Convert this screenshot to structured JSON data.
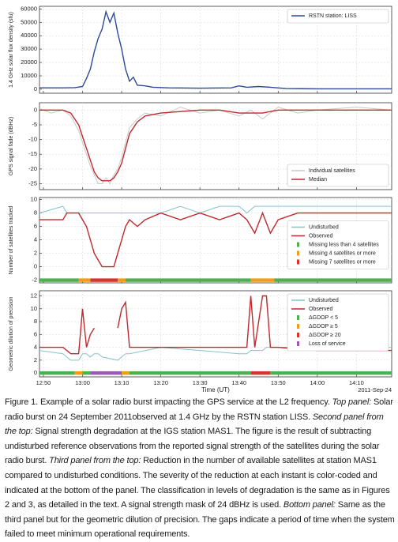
{
  "chart_data": [
    {
      "type": "line",
      "ylabel": "1.4 GHz solar flux density (sfu)",
      "xlim": [
        "12:49",
        "14:19"
      ],
      "ylim": [
        -3000,
        62000
      ],
      "yticks": [
        0,
        10000,
        20000,
        30000,
        40000,
        50000,
        60000
      ],
      "grid": true,
      "legend": "upper right",
      "x": [
        "12:49",
        "12:55",
        "12:58",
        "13:00",
        "13:01",
        "13:02",
        "13:03",
        "13:04",
        "13:05",
        "13:06",
        "13:07",
        "13:08",
        "13:09",
        "13:10",
        "13:11",
        "13:12",
        "13:13",
        "13:14",
        "13:16",
        "13:18",
        "13:22",
        "13:30",
        "13:38",
        "13:40",
        "13:42",
        "13:45",
        "13:48",
        "13:52",
        "14:00",
        "14:19"
      ],
      "series": [
        {
          "name": "RSTN station: LISS",
          "color": "#2b4a9b",
          "values": [
            1000,
            1000,
            1200,
            2000,
            8000,
            15000,
            28000,
            38000,
            45000,
            58000,
            50000,
            57000,
            42000,
            30000,
            15000,
            6000,
            9000,
            3000,
            2500,
            1500,
            1000,
            800,
            1000,
            2500,
            1500,
            2000,
            1500,
            500,
            300,
            300
          ]
        }
      ]
    },
    {
      "type": "line",
      "ylabel": "GPS signal fade (dBHz)",
      "xlim": [
        "12:49",
        "14:19"
      ],
      "ylim": [
        -27,
        2.5
      ],
      "yticks": [
        0,
        -5,
        -10,
        -15,
        -20,
        -25
      ],
      "grid": true,
      "legend": "lower right",
      "x": [
        "12:49",
        "12:52",
        "12:55",
        "12:57",
        "12:59",
        "13:00",
        "13:01",
        "13:02",
        "13:03",
        "13:04",
        "13:05",
        "13:06",
        "13:07",
        "13:08",
        "13:09",
        "13:10",
        "13:11",
        "13:12",
        "13:14",
        "13:16",
        "13:20",
        "13:25",
        "13:30",
        "13:35",
        "13:40",
        "13:43",
        "13:46",
        "13:50",
        "13:55",
        "14:00",
        "14:10",
        "14:19"
      ],
      "series": [
        {
          "name": "Individual satellites",
          "color": "#c8c8c8",
          "values": [
            0.5,
            -1,
            0,
            -2,
            -7,
            -11,
            -15,
            -19,
            -22,
            -25,
            -25,
            -23,
            -25,
            -22,
            -20,
            -16,
            -11,
            -6,
            -3,
            -1,
            -2,
            1,
            -1,
            0,
            -2,
            0,
            -3,
            1,
            -1,
            0,
            1,
            0
          ]
        },
        {
          "name": "Median",
          "color": "#c0282d",
          "values": [
            0,
            0,
            0,
            -1,
            -5,
            -9,
            -13,
            -17,
            -21,
            -23,
            -24,
            -24,
            -24,
            -23,
            -21,
            -18,
            -13,
            -8,
            -4,
            -2,
            -1,
            -0.5,
            0,
            0,
            -1,
            -1,
            -1,
            0,
            0,
            0,
            0,
            0
          ]
        }
      ]
    },
    {
      "type": "line",
      "ylabel": "Number of satellites tracked",
      "xlim": [
        "12:49",
        "14:19"
      ],
      "ylim": [
        -2.4,
        10.3
      ],
      "yticks": [
        -2,
        0,
        2,
        4,
        6,
        8,
        10
      ],
      "grid": true,
      "legend": "center right",
      "x": [
        "12:49",
        "12:55",
        "12:56",
        "12:59",
        "13:00",
        "13:01",
        "13:02",
        "13:03",
        "13:04",
        "13:05",
        "13:08",
        "13:09",
        "13:10",
        "13:11",
        "13:12",
        "13:14",
        "13:16",
        "13:20",
        "13:25",
        "13:30",
        "13:35",
        "13:40",
        "13:42",
        "13:44",
        "13:46",
        "13:48",
        "13:50",
        "13:55",
        "14:19"
      ],
      "series": [
        {
          "name": "Undisturbed",
          "color": "#86c3c6",
          "values": [
            8,
            9,
            8,
            8,
            8,
            8,
            8,
            8,
            8,
            8,
            8,
            8,
            8,
            8,
            8,
            8,
            8,
            8,
            9,
            8,
            9,
            9,
            8,
            9,
            9,
            9,
            9,
            9,
            9
          ]
        },
        {
          "name": "Observed",
          "color": "#c0282d",
          "values": [
            7,
            7,
            8,
            8,
            7,
            6,
            4,
            2,
            1,
            0,
            0,
            2,
            4,
            6,
            7,
            6,
            7,
            8,
            7,
            8,
            7,
            8,
            7,
            5,
            8,
            5,
            7,
            8,
            8
          ]
        }
      ],
      "status_y": -2,
      "status_legend": [
        {
          "name": "Missing less than 4 satellites",
          "color": "#4caf50"
        },
        {
          "name": "Missing 4 satellites or more",
          "color": "#f39c12"
        },
        {
          "name": "Missing 7 satellites or more",
          "color": "#d9342b"
        }
      ],
      "status": {
        "bins": [
          "12:49",
          "12:59",
          "13:02",
          "13:09",
          "13:11",
          "13:43",
          "13:49",
          "14:19"
        ],
        "levels": [
          0,
          1,
          2,
          1,
          0,
          1,
          0
        ]
      }
    },
    {
      "type": "line",
      "ylabel": "Geometric dilution of precision",
      "xlim": [
        "12:49",
        "14:19"
      ],
      "ylim": [
        -0.6,
        12.8
      ],
      "yticks": [
        0,
        2,
        4,
        6,
        8,
        10,
        12
      ],
      "grid": true,
      "legend": "upper right",
      "xticks": [
        "12:50",
        "13:00",
        "13:10",
        "13:20",
        "13:30",
        "13:40",
        "13:50",
        "14:00",
        "14:10"
      ],
      "xlabel": "Time (UT)",
      "date": "2011-Sep-24",
      "x": [
        "12:49",
        "12:55",
        "12:57",
        "12:59",
        "13:00",
        "13:01",
        "13:02",
        "13:03",
        "13:04",
        "13:05",
        "13:09",
        "13:10",
        "13:11",
        "13:12",
        "13:20",
        "13:30",
        "13:40",
        "13:42",
        "13:43",
        "13:44",
        "13:46",
        "13:47",
        "13:48",
        "13:50",
        "14:00",
        "14:19"
      ],
      "series": [
        {
          "name": "Undisturbed",
          "color": "#86c3c6",
          "values": [
            3.5,
            3,
            2,
            2,
            3,
            3,
            2.5,
            3,
            3,
            2.5,
            2,
            2.5,
            3,
            3,
            4,
            3.5,
            3,
            3,
            3.5,
            3.5,
            3.5,
            4,
            4,
            4,
            4,
            4
          ]
        },
        {
          "name": "Observed",
          "color": "#c0282d",
          "values": [
            4,
            4,
            3,
            3,
            10,
            4,
            6,
            7,
            null,
            null,
            7,
            10,
            11,
            4,
            4,
            4,
            4,
            4,
            12,
            4,
            12,
            12,
            4,
            4,
            3.5,
            3.5
          ]
        }
      ],
      "status_y": 0,
      "status_legend": [
        {
          "name": "ΔGDOP < 5",
          "color": "#4caf50"
        },
        {
          "name": "ΔGDOP ≥ 5",
          "color": "#f39c12"
        },
        {
          "name": "ΔGDOP ≥ 20",
          "color": "#d9342b"
        },
        {
          "name": "Loss of service",
          "color": "#9b59b6"
        }
      ],
      "status": {
        "bins": [
          "12:49",
          "12:58",
          "13:00",
          "13:02",
          "13:10",
          "13:12",
          "13:43",
          "13:48",
          "14:19"
        ],
        "levels": [
          0,
          1,
          0,
          3,
          1,
          0,
          2,
          0
        ]
      }
    }
  ],
  "caption": {
    "parts": [
      {
        "text": "Figure 1. Example of a solar radio burst impacting the GPS service at the L2 frequency. ",
        "style": "normal"
      },
      {
        "text": "Top panel:",
        "style": "italic"
      },
      {
        "text": " Solar radio burst on 24 September 2011observed at 1.4 GHz by the RSTN station LISS. ",
        "style": "normal"
      },
      {
        "text": "Second panel from the top:",
        "style": "italic"
      },
      {
        "text": " Signal strength degradation at the IGS station MAS1. The figure is the result of subtracting undisturbed reference observations from the reported signal strength of the satellites during the solar radio burst. ",
        "style": "normal"
      },
      {
        "text": "Third panel from the top:",
        "style": "italic"
      },
      {
        "text": " Reduction in the number of available satellites at station MAS1 compared to undisturbed conditions. The severity of the reduction at each instant is color-coded and indicated at the bottom of the panel. The classification in levels of degradation is the same as in Figures 2 and 3, as detailed in the text. A signal strength mask of 24 dBHz is used. ",
        "style": "normal"
      },
      {
        "text": "Bottom panel:",
        "style": "italic"
      },
      {
        "text": " Same as the third panel but for the geometric dilution of precision. The gaps indicate a period of time when the system failed to meet minimum operational requirements.",
        "style": "normal"
      }
    ]
  }
}
